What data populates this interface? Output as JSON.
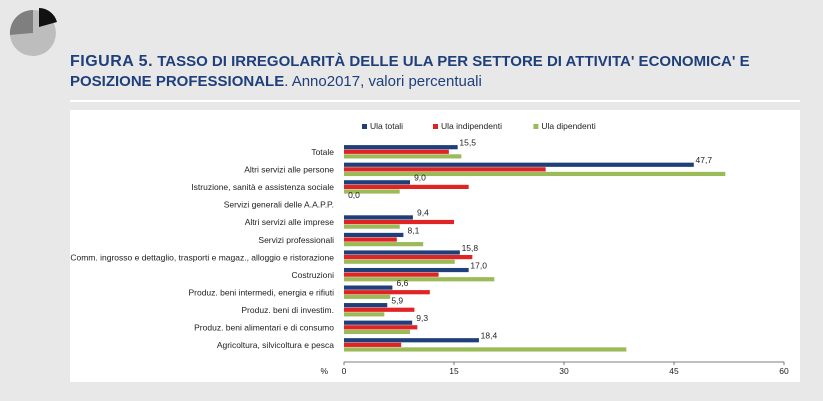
{
  "header": {
    "figure_label": "FIGURA 5.",
    "title": "TASSO DI IRREGOLARITÀ DELLE ULA PER SETTORE DI ATTIVITA' ECONOMICA' E POSIZIONE PROFESSIONALE",
    "subtitle": ". Anno2017, valori percentuali"
  },
  "colors": {
    "title": "#1f3f7a",
    "ula_totali": "#1f3f7a",
    "ula_indipendenti": "#e02424",
    "ula_dipendenti": "#9bbb59",
    "background": "#e8e8e8"
  },
  "chart_data": {
    "type": "bar",
    "orientation": "horizontal",
    "axis_unit_label": "%",
    "xlim": [
      0,
      60
    ],
    "xticks": [
      0,
      15,
      30,
      45,
      60
    ],
    "legend_position": "top",
    "categories": [
      "Totale",
      "Altri servizi alle persone",
      "Istruzione, sanità e assistenza sociale",
      "Servizi generali delle A.A.P.P.",
      "Altri servizi alle imprese",
      "Servizi professionali",
      "Comm. ingrosso e dettaglio, trasporti e magaz., alloggio e ristorazione",
      "Costruzioni",
      "Produz. beni intermedi, energia e rifiuti",
      "Produz. beni di investim.",
      "Produz. beni alimentari e di consumo",
      "Agricoltura, silvicoltura e pesca"
    ],
    "series": [
      {
        "name": "Ula totali",
        "values": [
          15.5,
          47.7,
          9.0,
          0.0,
          9.4,
          8.1,
          15.8,
          17.0,
          6.6,
          5.9,
          9.3,
          18.4
        ]
      },
      {
        "name": "Ula indipendenti",
        "values": [
          14.3,
          27.5,
          17.0,
          0.0,
          15.0,
          7.2,
          17.5,
          12.9,
          11.7,
          9.6,
          10.0,
          7.8
        ]
      },
      {
        "name": "Ula dipendenti",
        "values": [
          16.0,
          52.0,
          7.6,
          0.0,
          7.6,
          10.8,
          15.1,
          20.5,
          6.3,
          5.5,
          9.0,
          38.5
        ]
      }
    ],
    "data_labels": [
      "15,5",
      "47,7",
      "9,0",
      "0,0",
      "9,4",
      "8,1",
      "15,8",
      "17,0",
      "6,6",
      "5,9",
      "9,3",
      "18,4"
    ]
  }
}
